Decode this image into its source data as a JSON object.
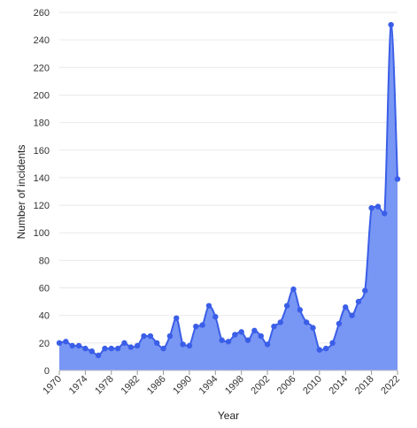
{
  "chart_data": {
    "type": "area",
    "title": "",
    "xlabel": "Year",
    "ylabel": "Number of incidents",
    "ylim": [
      0,
      260
    ],
    "xlim": [
      1970,
      2022
    ],
    "grid": true,
    "legend": "none",
    "y_ticks": [
      0,
      20,
      40,
      60,
      80,
      100,
      120,
      140,
      160,
      180,
      200,
      220,
      240,
      260
    ],
    "x_ticks": [
      1970,
      1974,
      1978,
      1982,
      1986,
      1990,
      1994,
      1998,
      2002,
      2006,
      2010,
      2014,
      2018,
      2022
    ],
    "colors": {
      "line": "#3a5ee8",
      "fill": "#7896f3",
      "point": "#3a5ee8"
    },
    "series": [
      {
        "x": [
          1970,
          1971,
          1972,
          1973,
          1974,
          1975,
          1976,
          1977,
          1978,
          1979,
          1980,
          1981,
          1982,
          1983,
          1984,
          1985,
          1986,
          1987,
          1988,
          1989,
          1990,
          1991,
          1992,
          1993,
          1994,
          1995,
          1996,
          1997,
          1998,
          1999,
          2000,
          2001,
          2002,
          2003,
          2004,
          2005,
          2006,
          2007,
          2008,
          2009,
          2010,
          2011,
          2012,
          2013,
          2014,
          2015,
          2016,
          2017,
          2018,
          2019,
          2020,
          2021,
          2022
        ],
        "values": [
          20,
          21,
          18,
          18,
          16,
          14,
          11,
          16,
          16,
          16,
          20,
          17,
          18,
          25,
          25,
          20,
          16,
          25,
          38,
          19,
          18,
          32,
          33,
          47,
          39,
          22,
          21,
          26,
          28,
          22,
          29,
          25,
          19,
          32,
          35,
          47,
          59,
          44,
          35,
          31,
          15,
          16,
          20,
          34,
          46,
          40,
          50,
          58,
          118,
          119,
          114,
          251,
          139
        ]
      }
    ]
  }
}
